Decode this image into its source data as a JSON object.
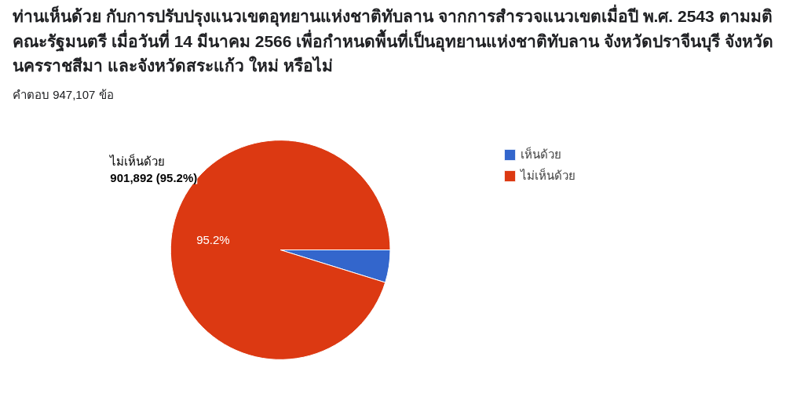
{
  "chart_data": {
    "type": "pie",
    "title": "ท่านเห็นด้วย กับการปรับปรุงแนวเขตอุทยานแห่งชาติทับลาน จากการสำรวจแนวเขตเมื่อปี พ.ศ. 2543 ตามมติคณะรัฐมนตรี เมื่อวันที่ 14 มีนาคม 2566 เพื่อกำหนดพื้นที่เป็นอุทยานแห่งชาติทับลาน จังหวัดปราจีนบุรี จังหวัดนครราชสีมา และจังหวัดสระแก้ว ใหม่ หรือไม่",
    "subtitle": "คำตอบ 947,107 ข้อ",
    "categories": [
      "เห็นด้วย",
      "ไม่เห็นด้วย"
    ],
    "values": [
      4.8,
      95.2
    ],
    "colors": [
      "#3366cc",
      "#dc3912"
    ],
    "value_labels": [
      null,
      "95.2%"
    ],
    "legend": "right",
    "annotations": [
      "ไม่เห็นด้วย\n901,892 (95.2%)"
    ]
  }
}
